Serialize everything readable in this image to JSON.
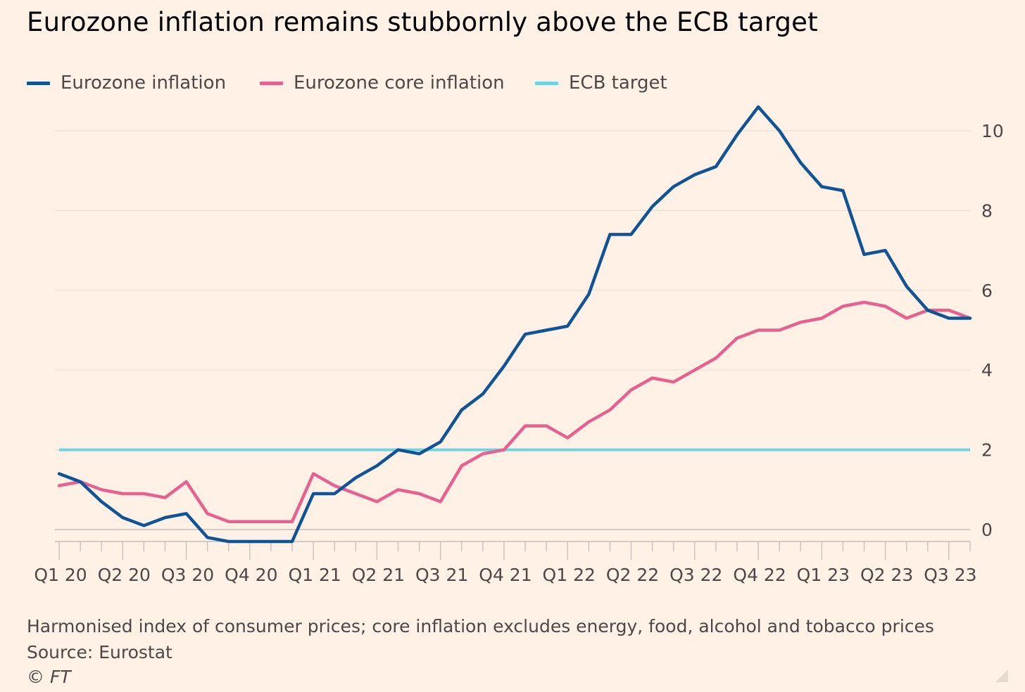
{
  "title": "Eurozone inflation remains stubbornly above the ECB target",
  "legend": [
    {
      "label": "Eurozone inflation",
      "color": "#0f5499"
    },
    {
      "label": "Eurozone core inflation",
      "color": "#e8608f"
    },
    {
      "label": "ECB target",
      "color": "#6fd3e2"
    }
  ],
  "footnote": "Harmonised index of consumer prices; core inflation excludes energy, food, alcohol and tobacco prices",
  "source": "Source: Eurostat",
  "copyright": "© FT",
  "chart_data": {
    "type": "line",
    "x_tick_labels": [
      "Q1 20",
      "Q2 20",
      "Q3 20",
      "Q4 20",
      "Q1 21",
      "Q2 21",
      "Q3 21",
      "Q4 21",
      "Q1 22",
      "Q2 22",
      "Q3 22",
      "Q4 22",
      "Q1 23",
      "Q2 23",
      "Q3 23"
    ],
    "months": [
      "Jan 20",
      "Feb 20",
      "Mar 20",
      "Apr 20",
      "May 20",
      "Jun 20",
      "Jul 20",
      "Aug 20",
      "Sep 20",
      "Oct 20",
      "Nov 20",
      "Dec 20",
      "Jan 21",
      "Feb 21",
      "Mar 21",
      "Apr 21",
      "May 21",
      "Jun 21",
      "Jul 21",
      "Aug 21",
      "Sep 21",
      "Oct 21",
      "Nov 21",
      "Dec 21",
      "Jan 22",
      "Feb 22",
      "Mar 22",
      "Apr 22",
      "May 22",
      "Jun 22",
      "Jul 22",
      "Aug 22",
      "Sep 22",
      "Oct 22",
      "Nov 22",
      "Dec 22",
      "Jan 23",
      "Feb 23",
      "Mar 23",
      "Apr 23",
      "May 23",
      "Jun 23",
      "Jul 23",
      "Aug 23"
    ],
    "series": [
      {
        "name": "Eurozone inflation",
        "color": "#0f5499",
        "values": [
          1.4,
          1.2,
          0.7,
          0.3,
          0.1,
          0.3,
          0.4,
          -0.2,
          -0.3,
          -0.3,
          -0.3,
          -0.3,
          0.9,
          0.9,
          1.3,
          1.6,
          2.0,
          1.9,
          2.2,
          3.0,
          3.4,
          4.1,
          4.9,
          5.0,
          5.1,
          5.9,
          7.4,
          7.4,
          8.1,
          8.6,
          8.9,
          9.1,
          9.9,
          10.6,
          10.0,
          9.2,
          8.6,
          8.5,
          6.9,
          7.0,
          6.1,
          5.5,
          5.3,
          5.3
        ]
      },
      {
        "name": "Eurozone core inflation",
        "color": "#e8608f",
        "values": [
          1.1,
          1.2,
          1.0,
          0.9,
          0.9,
          0.8,
          1.2,
          0.4,
          0.2,
          0.2,
          0.2,
          0.2,
          1.4,
          1.1,
          0.9,
          0.7,
          1.0,
          0.9,
          0.7,
          1.6,
          1.9,
          2.0,
          2.6,
          2.6,
          2.3,
          2.7,
          3.0,
          3.5,
          3.8,
          3.7,
          4.0,
          4.3,
          4.8,
          5.0,
          5.0,
          5.2,
          5.3,
          5.6,
          5.7,
          5.6,
          5.3,
          5.5,
          5.5,
          5.3
        ]
      },
      {
        "name": "ECB target",
        "color": "#6fd3e2",
        "constant": 2
      }
    ],
    "y_ticks": [
      0,
      2,
      4,
      6,
      8,
      10
    ],
    "ylim": [
      -0.3,
      10.6
    ],
    "grid": true,
    "y_axis_side": "right",
    "legend_position": "top-left"
  }
}
